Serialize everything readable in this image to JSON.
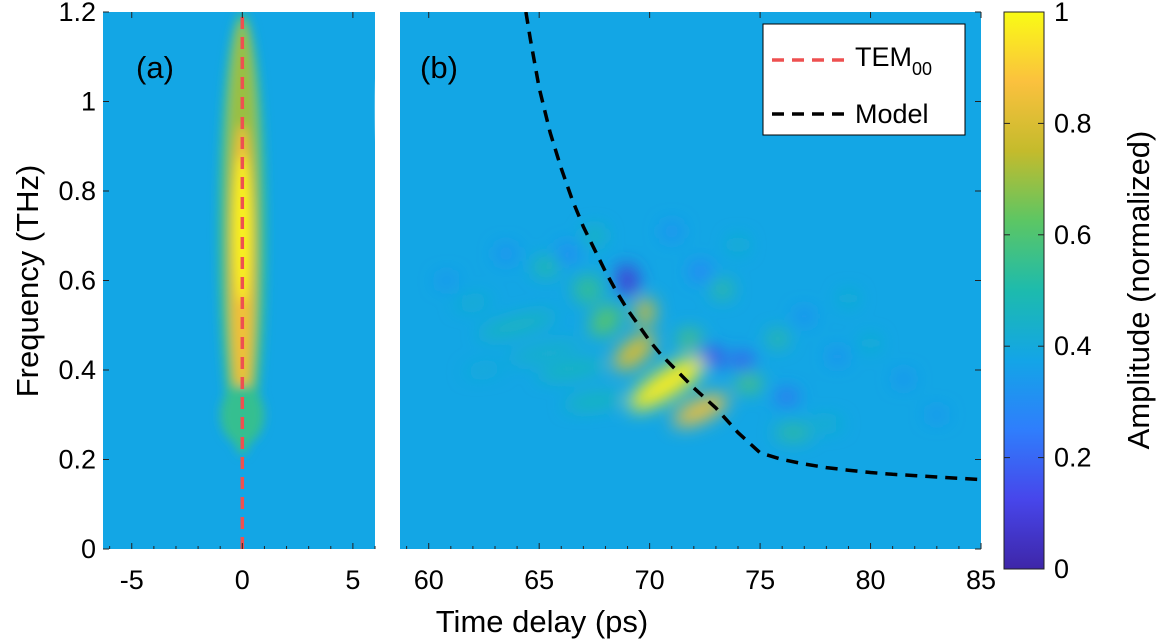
{
  "chart_data": {
    "type": "heatmap",
    "xlabel": "Time delay (ps)",
    "ylabel": "Frequency (THz)",
    "colorbar_label": "Amplitude (normalized)",
    "colormap": "parula",
    "colormap_stops": [
      "#3e26a8",
      "#4746eb",
      "#2f7efc",
      "#13a5e7",
      "#1dbbad",
      "#5cc664",
      "#c4bb2c",
      "#fbc13e",
      "#f9fb15"
    ],
    "background_value": 0.38,
    "panel_a": {
      "label": "(a)",
      "xlim": [
        -6.3,
        6.0
      ],
      "xticks": [
        -5,
        0,
        5
      ],
      "xticklabels": [
        "-5",
        "0",
        "5"
      ]
    },
    "panel_b": {
      "label": "(b)",
      "xlim": [
        58.7,
        85
      ],
      "xticks": [
        60,
        65,
        70,
        75,
        80,
        85
      ],
      "xticklabels": [
        "60",
        "65",
        "70",
        "75",
        "80",
        "85"
      ]
    },
    "ylim": [
      0,
      1.2
    ],
    "yticks": [
      0,
      0.2,
      0.4,
      0.6,
      0.8,
      1.0,
      1.2
    ],
    "yticklabels": [
      "0",
      "0.2",
      "0.4",
      "0.6",
      "0.8",
      "1",
      "1.2"
    ],
    "colorbar_lim": [
      0,
      1
    ],
    "colorbar_ticks": [
      0,
      0.2,
      0.4,
      0.6,
      0.8,
      1
    ],
    "colorbar_ticklabels": [
      "0",
      "0.2",
      "0.4",
      "0.6",
      "0.8",
      "1"
    ],
    "legend": {
      "location": "top-right",
      "entries": [
        {
          "name": "TEM",
          "subscript": "00",
          "color": "#ee5050",
          "style": "dashed"
        },
        {
          "name": "Model",
          "color": "#000000",
          "style": "dashed"
        }
      ]
    },
    "series": [
      {
        "name": "TEM00",
        "x": [
          0,
          0
        ],
        "y": [
          0,
          1.2
        ]
      },
      {
        "name": "Model",
        "x": [
          64.4,
          64.6,
          65.0,
          65.5,
          66.0,
          66.5,
          67.0,
          67.5,
          68.0,
          68.5,
          69.0,
          69.5,
          70.0,
          70.5,
          71.0,
          72.0,
          73.0,
          74.0,
          75.0,
          76.0,
          77.0,
          78.0,
          79.0,
          80.0,
          81.0,
          82.0,
          83.0,
          84.0,
          85.0
        ],
        "y": [
          1.2,
          1.14,
          1.03,
          0.93,
          0.85,
          0.78,
          0.72,
          0.67,
          0.62,
          0.575,
          0.535,
          0.5,
          0.465,
          0.435,
          0.41,
          0.36,
          0.315,
          0.26,
          0.215,
          0.2,
          0.19,
          0.182,
          0.176,
          0.171,
          0.167,
          0.164,
          0.161,
          0.158,
          0.155
        ]
      }
    ]
  }
}
